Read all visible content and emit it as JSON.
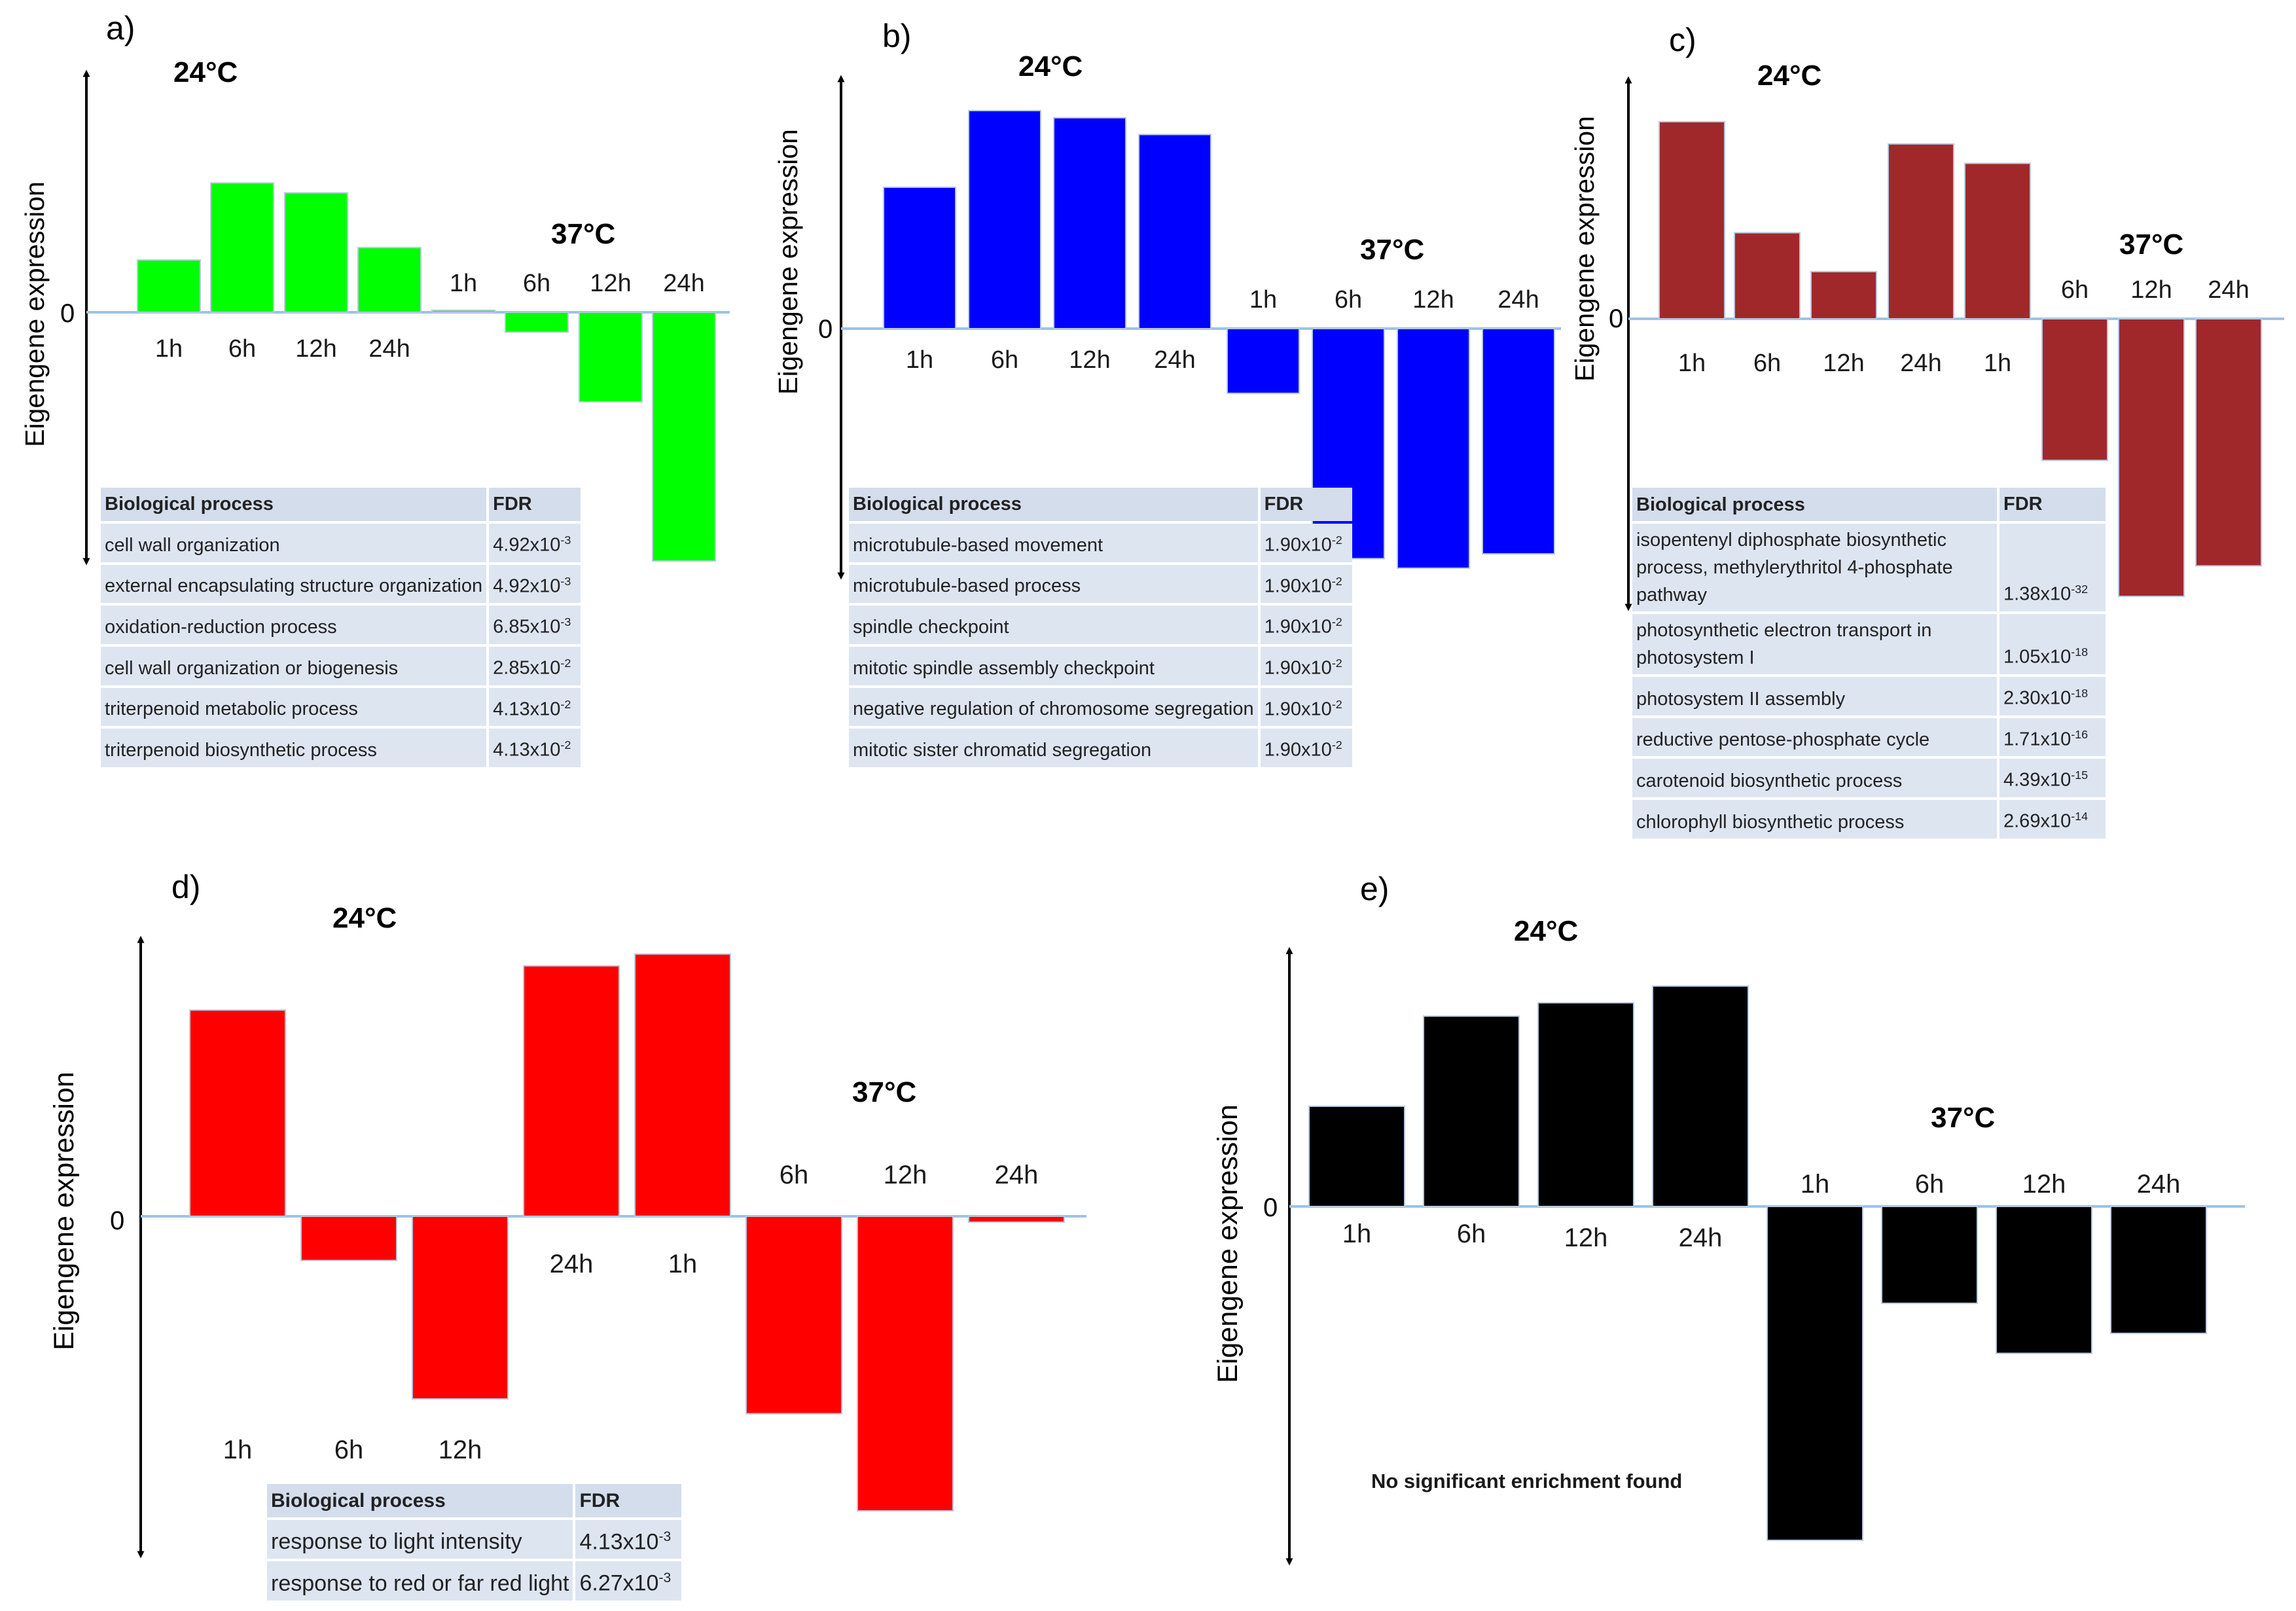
{
  "colors": {
    "a": "#00ff00",
    "b": "#0000ff",
    "c": "#a0282b",
    "d": "#ff0000",
    "e": "#000000",
    "baseline": "#9dc3e6"
  },
  "common": {
    "ylabel": "Eigengene expression",
    "zero": "0",
    "temp_low": "24°C",
    "temp_high": "37°C"
  },
  "chart_data": [
    {
      "panel": "a)",
      "type": "bar",
      "ylabel": "Eigengene expression",
      "groups": [
        {
          "label": "24°C",
          "categories": [
            "1h",
            "6h",
            "12h",
            "24h"
          ],
          "values": [
            0.21,
            0.52,
            0.48,
            0.26
          ]
        },
        {
          "label": "37°C",
          "categories": [
            "1h",
            "6h",
            "12h",
            "24h"
          ],
          "values": [
            0.0,
            -0.08,
            -0.36,
            -1.0
          ]
        }
      ],
      "table": {
        "header": [
          "Biological process",
          "FDR"
        ],
        "rows": [
          {
            "process": "cell wall organization",
            "mant": "4.92x10",
            "exp": "-3"
          },
          {
            "process": "external encapsulating structure organization",
            "mant": "4.92x10",
            "exp": "-3"
          },
          {
            "process": "oxidation-reduction process",
            "mant": "6.85x10",
            "exp": "-3"
          },
          {
            "process": "cell wall organization or biogenesis",
            "mant": "2.85x10",
            "exp": "-2"
          },
          {
            "process": "triterpenoid metabolic process",
            "mant": "4.13x10",
            "exp": "-2"
          },
          {
            "process": "triterpenoid biosynthetic process",
            "mant": "4.13x10",
            "exp": "-2"
          }
        ]
      }
    },
    {
      "panel": "b)",
      "type": "bar",
      "ylabel": "Eigengene expression",
      "groups": [
        {
          "label": "24°C",
          "categories": [
            "1h",
            "6h",
            "12h",
            "24h"
          ],
          "values": [
            0.59,
            0.91,
            0.88,
            0.81
          ]
        },
        {
          "label": "37°C",
          "categories": [
            "1h",
            "6h",
            "12h",
            "24h"
          ],
          "values": [
            -0.27,
            -0.96,
            -1.0,
            -0.94
          ]
        }
      ],
      "table": {
        "header": [
          "Biological process",
          "FDR"
        ],
        "rows": [
          {
            "process": "microtubule-based movement",
            "mant": "1.90x10",
            "exp": "-2"
          },
          {
            "process": "microtubule-based process",
            "mant": "1.90x10",
            "exp": "-2"
          },
          {
            "process": "spindle checkpoint",
            "mant": "1.90x10",
            "exp": "-2"
          },
          {
            "process": "mitotic spindle assembly checkpoint",
            "mant": "1.90x10",
            "exp": "-2"
          },
          {
            "process": "negative regulation of chromosome segregation",
            "mant": "1.90x10",
            "exp": "-2"
          },
          {
            "process": "mitotic sister chromatid segregation",
            "mant": "1.90x10",
            "exp": "-2"
          }
        ]
      }
    },
    {
      "panel": "c)",
      "type": "bar",
      "ylabel": "Eigengene expression",
      "groups": [
        {
          "label": "24°C",
          "categories": [
            "1h",
            "6h",
            "12h",
            "24h",
            "1h"
          ],
          "values": [
            0.71,
            0.31,
            0.17,
            0.63,
            0.56
          ]
        },
        {
          "label": "37°C",
          "categories": [
            "6h",
            "12h",
            "24h"
          ],
          "values": [
            -0.51,
            -1.0,
            -0.89
          ]
        }
      ],
      "table": {
        "header": [
          "Biological process",
          "FDR"
        ],
        "rows": [
          {
            "process": "isopentenyl diphosphate biosynthetic process, methylerythritol 4-phosphate pathway",
            "mant": "1.38x10",
            "exp": "-32"
          },
          {
            "process": "photosynthetic electron transport in photosystem I",
            "mant": "1.05x10",
            "exp": "-18"
          },
          {
            "process": "photosystem II assembly",
            "mant": "2.30x10",
            "exp": "-18"
          },
          {
            "process": "reductive pentose-phosphate cycle",
            "mant": "1.71x10",
            "exp": "-16"
          },
          {
            "process": "carotenoid biosynthetic process",
            "mant": "4.39x10",
            "exp": "-15"
          },
          {
            "process": "chlorophyll biosynthetic process",
            "mant": "2.69x10",
            "exp": "-14"
          }
        ]
      }
    },
    {
      "panel": "d)",
      "type": "bar",
      "ylabel": "Eigengene expression",
      "groups": [
        {
          "label": "24°C",
          "categories": [
            "1h",
            "6h",
            "12h",
            "24h",
            "1h"
          ],
          "values": [
            0.7,
            -0.15,
            -0.62,
            0.85,
            0.89
          ]
        },
        {
          "label": "37°C",
          "categories": [
            "6h",
            "12h",
            "24h"
          ],
          "values": [
            -0.67,
            -1.0,
            -0.02
          ]
        }
      ],
      "table": {
        "header": [
          "Biological process",
          "FDR"
        ],
        "rows": [
          {
            "process": "response to light intensity",
            "mant": "4.13x10",
            "exp": "-3"
          },
          {
            "process": "response to red or far red light",
            "mant": "6.27x10",
            "exp": "-3"
          }
        ]
      }
    },
    {
      "panel": "e)",
      "type": "bar",
      "ylabel": "Eigengene expression",
      "groups": [
        {
          "label": "24°C",
          "categories": [
            "1h",
            "6h",
            "12h",
            "24h"
          ],
          "values": [
            0.3,
            0.57,
            0.61,
            0.66
          ]
        },
        {
          "label": "37°C",
          "categories": [
            "1h",
            "6h",
            "12h",
            "24h"
          ],
          "values": [
            -1.0,
            -0.29,
            -0.44,
            -0.38
          ]
        }
      ],
      "note": "No significant  enrichment found"
    }
  ]
}
